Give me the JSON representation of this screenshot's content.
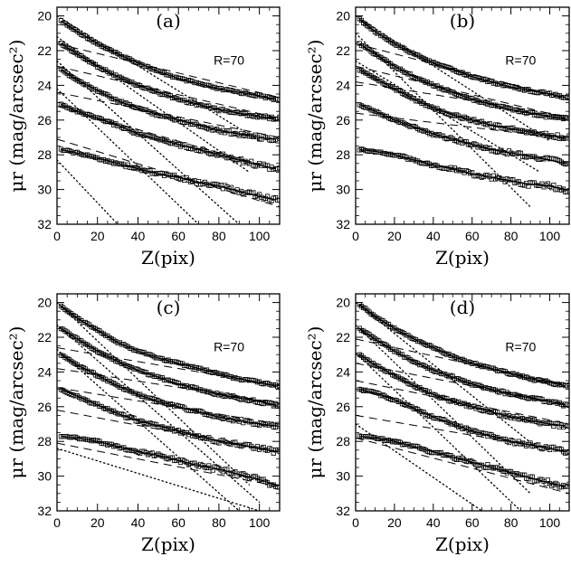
{
  "chart_data": [
    {
      "type": "line",
      "panel_label": "(a)",
      "annotation": "R=70",
      "xlabel": "Z(pix)",
      "ylabel": "μr (mag/arcsec²)",
      "xlim": [
        0,
        110
      ],
      "ylim": [
        32,
        19.5
      ],
      "x_ticks": [
        0,
        20,
        40,
        60,
        80,
        100
      ],
      "y_ticks": [
        20,
        22,
        24,
        26,
        28,
        30,
        32
      ],
      "profiles": [
        {
          "x": [
            2,
            10,
            20,
            30,
            40,
            50,
            60,
            70,
            80,
            90,
            100,
            108
          ],
          "y": [
            20.3,
            20.9,
            21.6,
            22.2,
            22.7,
            23.2,
            23.6,
            23.9,
            24.2,
            24.4,
            24.6,
            24.8
          ]
        },
        {
          "x": [
            2,
            10,
            20,
            30,
            40,
            50,
            60,
            70,
            80,
            90,
            100,
            108
          ],
          "y": [
            21.6,
            22.2,
            22.9,
            23.5,
            24.0,
            24.4,
            24.8,
            25.1,
            25.4,
            25.6,
            25.8,
            25.9
          ]
        },
        {
          "x": [
            2,
            10,
            20,
            30,
            40,
            50,
            60,
            70,
            80,
            90,
            100,
            108
          ],
          "y": [
            23.1,
            23.7,
            24.3,
            24.9,
            25.3,
            25.7,
            26.0,
            26.3,
            26.6,
            26.8,
            27.0,
            27.1
          ]
        },
        {
          "x": [
            2,
            10,
            20,
            30,
            40,
            50,
            60,
            70,
            80,
            90,
            100,
            108
          ],
          "y": [
            25.1,
            25.5,
            25.9,
            26.3,
            26.8,
            27.1,
            27.4,
            27.7,
            28.0,
            28.3,
            28.6,
            28.8
          ]
        },
        {
          "x": [
            2,
            10,
            20,
            30,
            40,
            50,
            60,
            70,
            80,
            90,
            100,
            108
          ],
          "y": [
            27.7,
            27.9,
            28.2,
            28.5,
            28.8,
            29.1,
            29.3,
            29.6,
            29.8,
            30.1,
            30.4,
            30.6
          ]
        }
      ],
      "disk_fits": [
        {
          "x": [
            0,
            110
          ],
          "y": [
            21.6,
            24.7
          ]
        },
        {
          "x": [
            0,
            110
          ],
          "y": [
            22.9,
            25.9
          ]
        },
        {
          "x": [
            0,
            110
          ],
          "y": [
            24.4,
            27.0
          ]
        },
        {
          "x": [
            0,
            110
          ],
          "y": [
            25.2,
            28.9
          ]
        },
        {
          "x": [
            0,
            110
          ],
          "y": [
            27.1,
            31.0
          ]
        }
      ],
      "bulge_fits": [
        {
          "x": [
            0,
            100
          ],
          "y": [
            20.0,
            27.2
          ]
        },
        {
          "x": [
            0,
            95
          ],
          "y": [
            21.2,
            29.0
          ]
        },
        {
          "x": [
            0,
            90
          ],
          "y": [
            22.6,
            32.0
          ]
        },
        {
          "x": [
            0,
            70
          ],
          "y": [
            24.2,
            32.0
          ]
        },
        {
          "x": [
            0,
            30
          ],
          "y": [
            28.3,
            32.0
          ]
        }
      ]
    },
    {
      "type": "line",
      "panel_label": "(b)",
      "annotation": "R=70",
      "xlabel": "Z(pix)",
      "ylabel": "μr (mag/arcsec²)",
      "xlim": [
        0,
        110
      ],
      "ylim": [
        32,
        19.5
      ],
      "x_ticks": [
        0,
        20,
        40,
        60,
        80,
        100
      ],
      "y_ticks": [
        20,
        22,
        24,
        26,
        28,
        30,
        32
      ],
      "profiles": [
        {
          "x": [
            2,
            10,
            20,
            30,
            40,
            50,
            60,
            70,
            80,
            90,
            100,
            108
          ],
          "y": [
            20.2,
            20.9,
            21.6,
            22.2,
            22.7,
            23.1,
            23.5,
            23.8,
            24.1,
            24.3,
            24.5,
            24.7
          ]
        },
        {
          "x": [
            2,
            10,
            20,
            30,
            40,
            50,
            60,
            70,
            80,
            90,
            100,
            108
          ],
          "y": [
            21.6,
            22.2,
            22.9,
            23.5,
            24.0,
            24.4,
            24.8,
            25.1,
            25.4,
            25.6,
            25.8,
            25.9
          ]
        },
        {
          "x": [
            2,
            10,
            20,
            30,
            40,
            50,
            60,
            70,
            80,
            90,
            100,
            108
          ],
          "y": [
            23.1,
            23.6,
            24.2,
            24.8,
            25.3,
            25.7,
            26.0,
            26.3,
            26.5,
            26.7,
            26.9,
            27.0
          ]
        },
        {
          "x": [
            2,
            10,
            20,
            30,
            40,
            50,
            60,
            70,
            80,
            90,
            100,
            108
          ],
          "y": [
            25.1,
            25.5,
            26.0,
            26.4,
            26.8,
            27.1,
            27.4,
            27.7,
            27.9,
            28.1,
            28.3,
            28.5
          ]
        },
        {
          "x": [
            2,
            10,
            20,
            30,
            40,
            50,
            60,
            70,
            80,
            90,
            100,
            108
          ],
          "y": [
            27.7,
            27.8,
            28.0,
            28.3,
            28.6,
            28.8,
            29.1,
            29.3,
            29.5,
            29.7,
            29.8,
            30.0
          ]
        }
      ],
      "disk_fits": [
        {
          "x": [
            0,
            110
          ],
          "y": [
            21.6,
            24.8
          ]
        },
        {
          "x": [
            0,
            110
          ],
          "y": [
            22.9,
            25.9
          ]
        },
        {
          "x": [
            0,
            110
          ],
          "y": [
            23.8,
            25.8
          ]
        },
        {
          "x": [
            0,
            110
          ],
          "y": [
            25.6,
            27.1
          ]
        }
      ],
      "bulge_fits": [
        {
          "x": [
            0,
            100
          ],
          "y": [
            20.0,
            27.2
          ]
        },
        {
          "x": [
            0,
            90
          ],
          "y": [
            21.0,
            31.0
          ]
        },
        {
          "x": [
            0,
            95
          ],
          "y": [
            22.6,
            29.0
          ]
        }
      ]
    },
    {
      "type": "line",
      "panel_label": "(c)",
      "annotation": "R=70",
      "xlabel": "Z(pix)",
      "ylabel": "μr (mag/arcsec²)",
      "xlim": [
        0,
        110
      ],
      "ylim": [
        32,
        19.5
      ],
      "x_ticks": [
        0,
        20,
        40,
        60,
        80,
        100
      ],
      "y_ticks": [
        20,
        22,
        24,
        26,
        28,
        30,
        32
      ],
      "profiles": [
        {
          "x": [
            2,
            10,
            20,
            30,
            40,
            50,
            60,
            70,
            80,
            90,
            100,
            108
          ],
          "y": [
            20.2,
            20.9,
            21.6,
            22.3,
            22.8,
            23.2,
            23.5,
            23.8,
            24.1,
            24.4,
            24.6,
            24.8
          ]
        },
        {
          "x": [
            2,
            10,
            20,
            30,
            40,
            50,
            60,
            70,
            80,
            90,
            100,
            108
          ],
          "y": [
            21.5,
            22.1,
            22.8,
            23.4,
            23.9,
            24.3,
            24.7,
            25.0,
            25.3,
            25.5,
            25.7,
            25.9
          ]
        },
        {
          "x": [
            2,
            10,
            20,
            30,
            40,
            50,
            60,
            70,
            80,
            90,
            100,
            108
          ],
          "y": [
            23.0,
            23.6,
            24.2,
            24.8,
            25.3,
            25.7,
            26.0,
            26.3,
            26.6,
            26.8,
            27.0,
            27.1
          ]
        },
        {
          "x": [
            2,
            10,
            20,
            30,
            40,
            50,
            60,
            70,
            80,
            90,
            100,
            108
          ],
          "y": [
            25.0,
            25.4,
            25.9,
            26.4,
            26.8,
            27.1,
            27.4,
            27.7,
            28.0,
            28.2,
            28.4,
            28.6
          ]
        },
        {
          "x": [
            2,
            10,
            20,
            30,
            40,
            50,
            60,
            70,
            80,
            90,
            100,
            108
          ],
          "y": [
            27.7,
            27.8,
            28.0,
            28.3,
            28.6,
            28.8,
            29.1,
            29.4,
            29.6,
            29.9,
            30.2,
            30.5
          ]
        }
      ],
      "disk_fits": [
        {
          "x": [
            0,
            110
          ],
          "y": [
            22.6,
            24.8
          ]
        },
        {
          "x": [
            0,
            110
          ],
          "y": [
            23.8,
            25.8
          ]
        },
        {
          "x": [
            0,
            110
          ],
          "y": [
            24.9,
            27.0
          ]
        },
        {
          "x": [
            0,
            110
          ],
          "y": [
            26.2,
            28.6
          ]
        },
        {
          "x": [
            0,
            110
          ],
          "y": [
            28.1,
            30.6
          ]
        }
      ],
      "bulge_fits": [
        {
          "x": [
            0,
            95
          ],
          "y": [
            20.0,
            30.5
          ]
        },
        {
          "x": [
            0,
            100
          ],
          "y": [
            21.3,
            31.5
          ]
        },
        {
          "x": [
            0,
            90
          ],
          "y": [
            22.7,
            32.0
          ]
        },
        {
          "x": [
            0,
            100
          ],
          "y": [
            28.4,
            32.0
          ]
        }
      ]
    },
    {
      "type": "line",
      "panel_label": "(d)",
      "annotation": "R=70",
      "xlabel": "Z(pix)",
      "ylabel": "μr (mag/arcsec²)",
      "xlim": [
        0,
        110
      ],
      "ylim": [
        32,
        19.5
      ],
      "x_ticks": [
        0,
        20,
        40,
        60,
        80,
        100
      ],
      "y_ticks": [
        20,
        22,
        24,
        26,
        28,
        30,
        32
      ],
      "profiles": [
        {
          "x": [
            2,
            10,
            20,
            30,
            40,
            50,
            60,
            70,
            80,
            90,
            100,
            108
          ],
          "y": [
            20.1,
            20.8,
            21.5,
            22.1,
            22.6,
            23.1,
            23.5,
            23.8,
            24.1,
            24.4,
            24.6,
            24.8
          ]
        },
        {
          "x": [
            2,
            10,
            20,
            30,
            40,
            50,
            60,
            70,
            80,
            90,
            100,
            108
          ],
          "y": [
            21.5,
            22.1,
            22.8,
            23.4,
            23.9,
            24.3,
            24.7,
            25.0,
            25.3,
            25.5,
            25.7,
            25.9
          ]
        },
        {
          "x": [
            2,
            10,
            20,
            30,
            40,
            50,
            60,
            70,
            80,
            90,
            100,
            108
          ],
          "y": [
            23.0,
            23.6,
            24.2,
            24.8,
            25.3,
            25.7,
            26.0,
            26.3,
            26.6,
            26.8,
            27.0,
            27.1
          ]
        },
        {
          "x": [
            2,
            10,
            20,
            30,
            40,
            50,
            60,
            70,
            80,
            90,
            100,
            108
          ],
          "y": [
            25.0,
            25.2,
            25.6,
            26.1,
            26.6,
            27.0,
            27.4,
            27.7,
            28.0,
            28.2,
            28.4,
            28.6
          ]
        },
        {
          "x": [
            2,
            10,
            20,
            30,
            40,
            50,
            60,
            70,
            80,
            90,
            100,
            108
          ],
          "y": [
            27.7,
            27.8,
            28.0,
            28.3,
            28.6,
            28.9,
            29.2,
            29.5,
            29.8,
            30.1,
            30.4,
            30.6
          ]
        }
      ],
      "disk_fits": [
        {
          "x": [
            0,
            110
          ],
          "y": [
            22.1,
            24.8
          ]
        },
        {
          "x": [
            0,
            110
          ],
          "y": [
            23.5,
            25.9
          ]
        },
        {
          "x": [
            0,
            110
          ],
          "y": [
            24.5,
            27.0
          ]
        },
        {
          "x": [
            0,
            110
          ],
          "y": [
            26.5,
            28.6
          ]
        },
        {
          "x": [
            0,
            110
          ],
          "y": [
            27.8,
            31.0
          ]
        }
      ],
      "bulge_fits": [
        {
          "x": [
            0,
            95
          ],
          "y": [
            20.0,
            28.5
          ]
        },
        {
          "x": [
            0,
            90
          ],
          "y": [
            21.3,
            31.0
          ]
        },
        {
          "x": [
            0,
            85
          ],
          "y": [
            22.9,
            32.0
          ]
        },
        {
          "x": [
            0,
            65
          ],
          "y": [
            27.0,
            32.0
          ]
        }
      ]
    }
  ]
}
